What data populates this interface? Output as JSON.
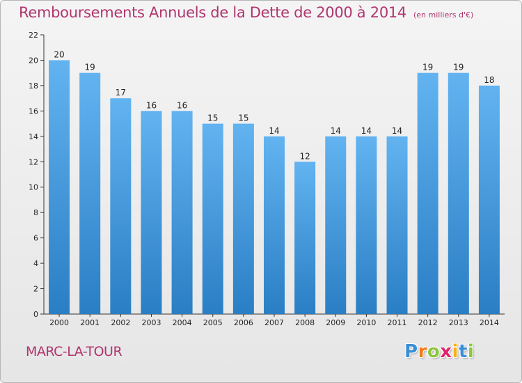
{
  "chart_data": {
    "type": "bar",
    "title": "Remboursements Annuels de la Dette de 2000 à 2014",
    "unit_label": "(en milliers d'€)",
    "categories": [
      "2000",
      "2001",
      "2002",
      "2003",
      "2004",
      "2005",
      "2006",
      "2007",
      "2008",
      "2009",
      "2010",
      "2011",
      "2012",
      "2013",
      "2014"
    ],
    "values": [
      20,
      19,
      17,
      16,
      16,
      15,
      15,
      14,
      12,
      14,
      14,
      14,
      19,
      19,
      18
    ],
    "value_labels": [
      "20",
      "19",
      "17",
      "16",
      "16",
      "15",
      "15",
      "14",
      "12",
      "14",
      "14",
      "14",
      "19",
      "19",
      "18"
    ],
    "yticks": [
      0,
      2,
      4,
      6,
      8,
      10,
      12,
      14,
      16,
      18,
      20,
      22
    ],
    "ylim": [
      0,
      22
    ],
    "xlabel": "",
    "ylabel": "",
    "grid": false,
    "legend": "none",
    "colors": {
      "bar_top": "#62b3f0",
      "bar_bottom": "#2a7ec4",
      "title": "#b0356f",
      "axis": "#333333"
    }
  },
  "footer": {
    "city": "MARC-LA-TOUR",
    "logo_letters": [
      {
        "ch": "P",
        "color": "#3b8fd6"
      },
      {
        "ch": "r",
        "color": "#f07a1d"
      },
      {
        "ch": "o",
        "color": "#8dc63f"
      },
      {
        "ch": "x",
        "color": "#e2256b"
      },
      {
        "ch": "i",
        "color": "#f6b11a"
      },
      {
        "ch": "t",
        "color": "#3b8fd6"
      },
      {
        "ch": "i",
        "color": "#8dc63f"
      }
    ]
  }
}
